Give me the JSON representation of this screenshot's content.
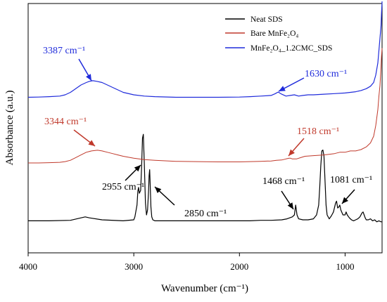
{
  "chart_data": {
    "type": "line",
    "xlabel": "Wavenumber (cm⁻¹)",
    "ylabel": "Absorbance (a.u.)",
    "xlim": [
      4000,
      650
    ],
    "x_reversed": true,
    "y_ticks_shown": false,
    "x_ticks": [
      4000,
      3000,
      2000,
      1000
    ],
    "x_tick_labels": [
      "4000",
      "3000",
      "2000",
      "1000"
    ],
    "legend_position": "top-right",
    "series": [
      {
        "name": "Neat SDS",
        "color": "#000000",
        "x": [
          4000,
          3800,
          3600,
          3500,
          3460,
          3420,
          3300,
          3100,
          3000,
          2990,
          2970,
          2962,
          2955,
          2948,
          2935,
          2925,
          2918,
          2910,
          2900,
          2890,
          2880,
          2870,
          2860,
          2855,
          2850,
          2845,
          2838,
          2830,
          2820,
          2800,
          2700,
          2500,
          2300,
          2100,
          1900,
          1800,
          1700,
          1600,
          1550,
          1500,
          1480,
          1468,
          1455,
          1440,
          1400,
          1350,
          1300,
          1270,
          1250,
          1240,
          1230,
          1220,
          1210,
          1200,
          1190,
          1180,
          1170,
          1150,
          1130,
          1110,
          1090,
          1081,
          1070,
          1060,
          1050,
          1040,
          1020,
          1000,
          990,
          980,
          960,
          940,
          920,
          900,
          880,
          860,
          840,
          830,
          820,
          810,
          800,
          780,
          760,
          740,
          720,
          700,
          680,
          660,
          650
        ],
        "y": [
          0.04,
          0.04,
          0.045,
          0.07,
          0.08,
          0.07,
          0.05,
          0.04,
          0.05,
          0.08,
          0.2,
          0.34,
          0.38,
          0.32,
          0.35,
          0.62,
          0.88,
          0.92,
          0.6,
          0.22,
          0.1,
          0.15,
          0.35,
          0.5,
          0.56,
          0.42,
          0.18,
          0.08,
          0.05,
          0.04,
          0.04,
          0.04,
          0.04,
          0.04,
          0.04,
          0.045,
          0.045,
          0.05,
          0.06,
          0.08,
          0.1,
          0.2,
          0.1,
          0.06,
          0.05,
          0.05,
          0.06,
          0.1,
          0.2,
          0.38,
          0.6,
          0.75,
          0.76,
          0.7,
          0.45,
          0.2,
          0.1,
          0.06,
          0.09,
          0.13,
          0.22,
          0.24,
          0.17,
          0.18,
          0.2,
          0.15,
          0.1,
          0.1,
          0.13,
          0.1,
          0.07,
          0.05,
          0.04,
          0.05,
          0.06,
          0.08,
          0.12,
          0.13,
          0.1,
          0.07,
          0.05,
          0.05,
          0.06,
          0.04,
          0.05,
          0.03,
          0.04,
          0.03,
          0.03
        ]
      },
      {
        "name": "Bare MnFe₂O₄",
        "color": "#c0392b",
        "x": [
          4000,
          3900,
          3800,
          3700,
          3650,
          3600,
          3550,
          3500,
          3450,
          3400,
          3344,
          3300,
          3250,
          3200,
          3150,
          3100,
          3000,
          2900,
          2800,
          2600,
          2400,
          2200,
          2000,
          1900,
          1800,
          1700,
          1650,
          1600,
          1560,
          1530,
          1518,
          1500,
          1460,
          1420,
          1380,
          1300,
          1200,
          1100,
          1050,
          1000,
          950,
          900,
          850,
          800,
          760,
          730,
          710,
          690,
          680,
          670,
          660,
          655,
          650
        ],
        "y": [
          0.0,
          0.0,
          0.002,
          0.005,
          0.01,
          0.02,
          0.04,
          0.06,
          0.08,
          0.09,
          0.095,
          0.09,
          0.08,
          0.07,
          0.06,
          0.05,
          0.035,
          0.025,
          0.02,
          0.012,
          0.01,
          0.008,
          0.008,
          0.01,
          0.012,
          0.015,
          0.02,
          0.022,
          0.03,
          0.035,
          0.036,
          0.03,
          0.03,
          0.04,
          0.05,
          0.055,
          0.06,
          0.07,
          0.08,
          0.08,
          0.09,
          0.09,
          0.1,
          0.12,
          0.15,
          0.2,
          0.28,
          0.4,
          0.5,
          0.58,
          0.72,
          0.8,
          0.86
        ]
      },
      {
        "name": "MnFe₂O₄_1.2CMC_SDS",
        "color": "#1f2bdb",
        "x": [
          4000,
          3900,
          3800,
          3700,
          3650,
          3600,
          3550,
          3500,
          3450,
          3420,
          3387,
          3350,
          3300,
          3250,
          3200,
          3150,
          3100,
          3000,
          2900,
          2800,
          2600,
          2400,
          2200,
          2000,
          1900,
          1800,
          1700,
          1660,
          1640,
          1630,
          1620,
          1600,
          1560,
          1520,
          1480,
          1440,
          1400,
          1350,
          1300,
          1200,
          1100,
          1000,
          950,
          900,
          850,
          800,
          760,
          730,
          710,
          690,
          680,
          670,
          660,
          655,
          650
        ],
        "y": [
          0.02,
          0.022,
          0.025,
          0.03,
          0.04,
          0.06,
          0.09,
          0.12,
          0.14,
          0.15,
          0.155,
          0.15,
          0.14,
          0.12,
          0.1,
          0.08,
          0.06,
          0.04,
          0.03,
          0.025,
          0.02,
          0.02,
          0.02,
          0.022,
          0.025,
          0.03,
          0.035,
          0.05,
          0.06,
          0.062,
          0.055,
          0.045,
          0.03,
          0.035,
          0.04,
          0.03,
          0.035,
          0.04,
          0.04,
          0.045,
          0.05,
          0.055,
          0.06,
          0.065,
          0.075,
          0.09,
          0.11,
          0.14,
          0.2,
          0.3,
          0.4,
          0.5,
          0.6,
          0.7,
          0.8
        ]
      }
    ],
    "annotations": [
      {
        "text": "3387 cm⁻¹",
        "color": "#1f2bdb"
      },
      {
        "text": "1630 cm⁻¹",
        "color": "#1f2bdb"
      },
      {
        "text": "3344 cm⁻¹",
        "color": "#c0392b"
      },
      {
        "text": "1518 cm⁻¹",
        "color": "#c0392b"
      },
      {
        "text": "2955 cm⁻¹",
        "color": "#000000"
      },
      {
        "text": "2850 cm⁻¹",
        "color": "#000000"
      },
      {
        "text": "1468 cm⁻¹",
        "color": "#000000"
      },
      {
        "text": "1081 cm⁻¹",
        "color": "#000000"
      }
    ]
  }
}
